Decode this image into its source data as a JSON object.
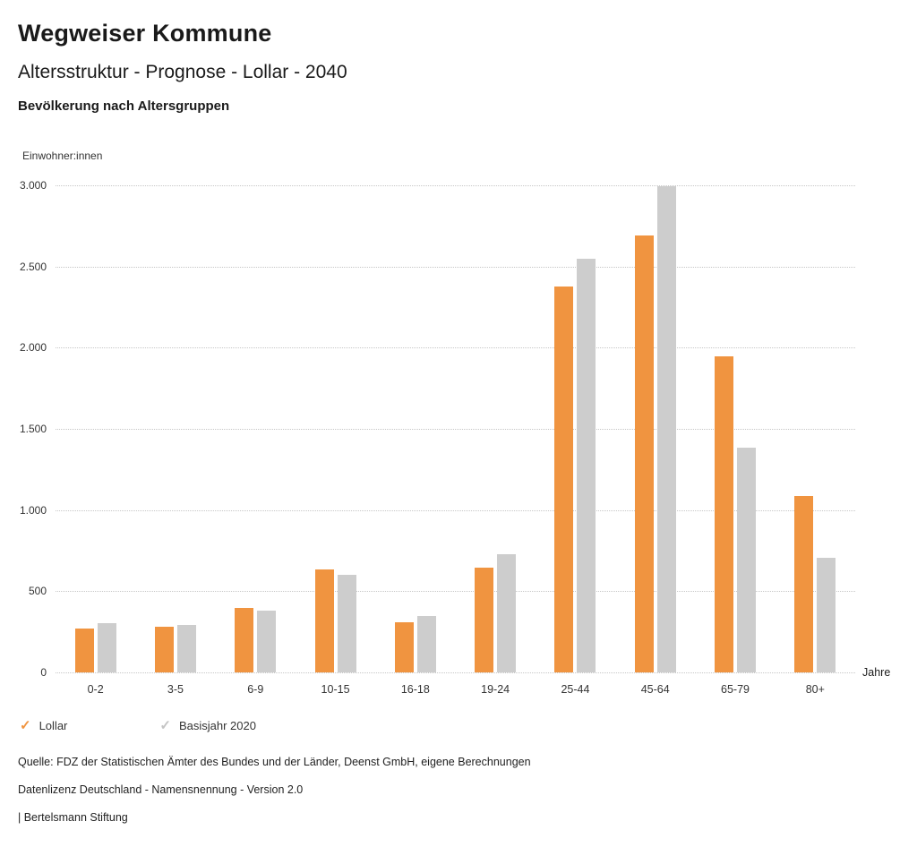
{
  "header": {
    "title": "Wegweiser Kommune",
    "subtitle": "Altersstruktur - Prognose - Lollar - 2040",
    "chart_heading": "Bevölkerung nach Altersgruppen"
  },
  "chart_data": {
    "type": "bar",
    "title": "Bevölkerung nach Altersgruppen",
    "categories": [
      "0-2",
      "3-5",
      "6-9",
      "10-15",
      "16-18",
      "19-24",
      "25-44",
      "45-64",
      "65-79",
      "80+"
    ],
    "series": [
      {
        "name": "Lollar",
        "color": "#F09440",
        "values": [
          270,
          280,
          400,
          635,
          310,
          645,
          2375,
          2690,
          1945,
          1085
        ]
      },
      {
        "name": "Basisjahr 2020",
        "color": "#CDCDCD",
        "values": [
          305,
          295,
          380,
          600,
          345,
          730,
          2550,
          2995,
          1385,
          705
        ]
      }
    ],
    "ylabel": "Einwohner:innen",
    "xlabel": "Jahre",
    "ylim": [
      0,
      3000
    ],
    "ytick_interval": 500,
    "ytick_labels": [
      "0",
      "500",
      "1.000",
      "1.500",
      "2.000",
      "2.500",
      "3.000"
    ],
    "grid": "horizontal-dotted",
    "legend_position": "bottom-left"
  },
  "legend": {
    "items": [
      {
        "label": "Lollar",
        "color": "#F09440"
      },
      {
        "label": "Basisjahr 2020",
        "color": "#C4C4C4"
      }
    ]
  },
  "icons": {
    "check": "✓"
  },
  "footer": {
    "source": "Quelle: FDZ der Statistischen Ämter des Bundes und der Länder, Deenst GmbH, eigene Berechnungen",
    "license": "Datenlizenz Deutschland - Namensnennung - Version 2.0",
    "attribution": "| Bertelsmann Stiftung"
  }
}
